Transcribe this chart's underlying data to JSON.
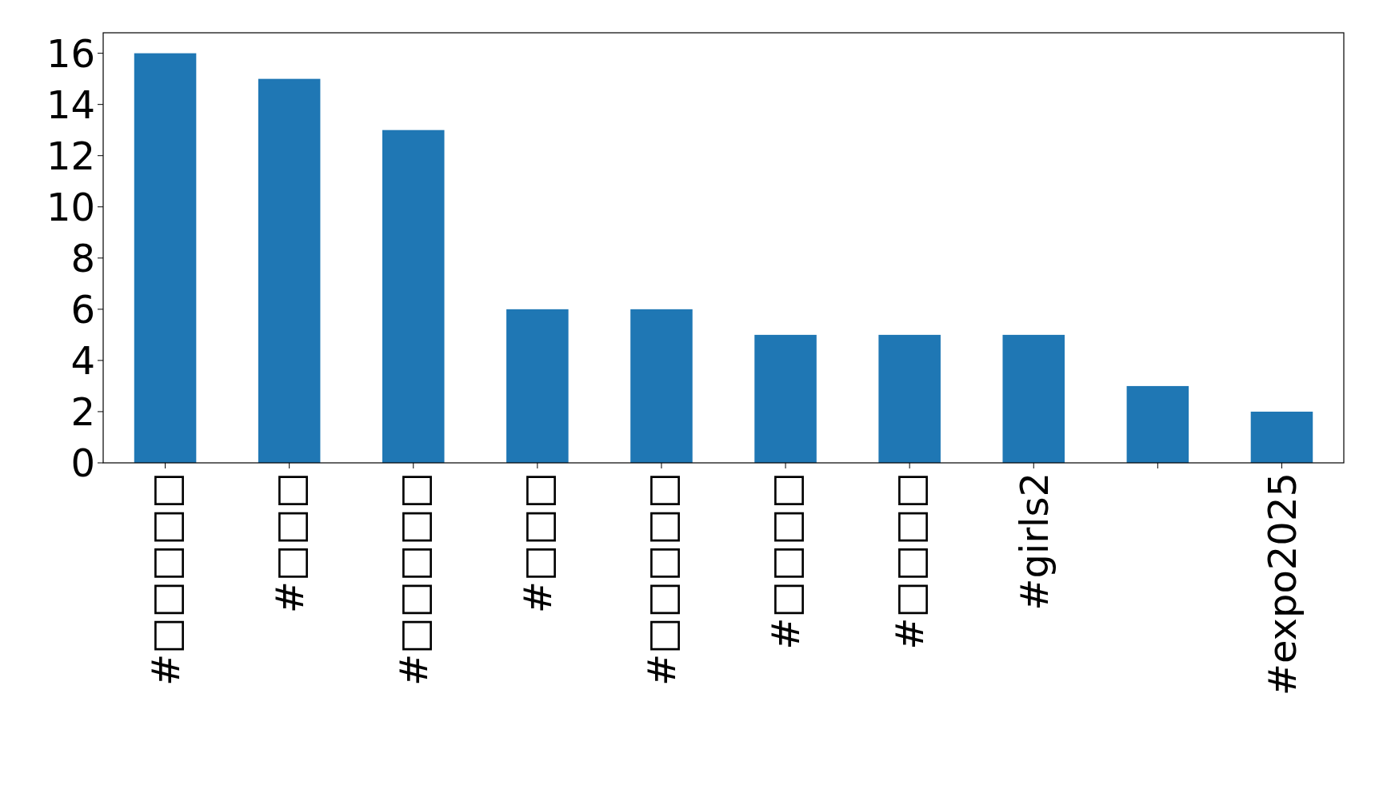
{
  "chart_data": {
    "type": "bar",
    "categories": [
      "#□□□□□",
      "#□□□",
      "#□□□□□",
      "#□□□",
      "#□□□□□",
      "#□□□□",
      "#□□□□",
      "#girls2",
      null,
      "#expo2025"
    ],
    "values": [
      16,
      15,
      13,
      6,
      6,
      5,
      5,
      5,
      3,
      2
    ],
    "color": "#1f77b4",
    "ylim": [
      0,
      16.8
    ],
    "yticks": [
      0,
      2,
      4,
      6,
      8,
      10,
      12,
      14,
      16
    ],
    "grid": false
  }
}
